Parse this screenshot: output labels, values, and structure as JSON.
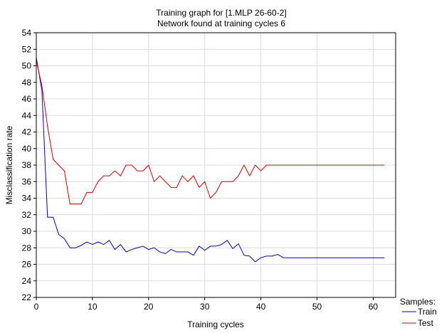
{
  "chart_data": {
    "type": "line",
    "title": "Training graph for [1.MLP 26-60-2]",
    "subtitle": "Network found at training cycles 6",
    "xlabel": "Training cycles",
    "ylabel": "Misclassification rate",
    "xlim": [
      0,
      64
    ],
    "ylim": [
      22,
      54
    ],
    "x_ticks": [
      0,
      10,
      20,
      30,
      40,
      50,
      60
    ],
    "y_ticks": [
      22,
      24,
      26,
      28,
      30,
      32,
      34,
      36,
      38,
      40,
      42,
      44,
      46,
      48,
      50,
      52,
      54
    ],
    "grid": true,
    "legend": {
      "title": "Samples:",
      "placement": "bottom-right"
    },
    "series": [
      {
        "name": "Train",
        "color": "#0000cc",
        "x": [
          0,
          1,
          2,
          3,
          4,
          5,
          6,
          7,
          8,
          9,
          10,
          11,
          12,
          13,
          14,
          15,
          16,
          17,
          18,
          19,
          20,
          21,
          22,
          23,
          24,
          25,
          26,
          27,
          28,
          29,
          30,
          31,
          32,
          33,
          34,
          35,
          36,
          37,
          38,
          39,
          40,
          41,
          42,
          43,
          44,
          45,
          46,
          47,
          48,
          49,
          50,
          51,
          52,
          53,
          54,
          55,
          56,
          57,
          58,
          59,
          60,
          61,
          62
        ],
        "values": [
          51.0,
          47.0,
          31.7,
          31.7,
          29.6,
          29.1,
          28.0,
          28.0,
          28.3,
          28.7,
          28.4,
          28.7,
          28.4,
          28.9,
          27.8,
          28.4,
          27.5,
          27.8,
          28.0,
          28.2,
          27.8,
          28.0,
          27.5,
          27.3,
          27.8,
          27.5,
          27.5,
          27.5,
          27.1,
          28.2,
          27.7,
          28.2,
          28.2,
          28.4,
          28.9,
          27.9,
          28.5,
          27.1,
          27.0,
          26.3,
          26.8,
          27.0,
          27.0,
          27.2,
          26.8,
          26.8,
          26.8,
          26.8,
          26.8,
          26.8,
          26.8,
          26.8,
          26.8,
          26.8,
          26.8,
          26.8,
          26.8,
          26.8,
          26.8,
          26.8,
          26.8,
          26.8,
          26.8
        ]
      },
      {
        "name": "Test",
        "color": "#dd0000",
        "x": [
          0,
          1,
          2,
          3,
          4,
          5,
          6,
          7,
          8,
          9,
          10,
          11,
          12,
          13,
          14,
          15,
          16,
          17,
          18,
          19,
          20,
          21,
          22,
          23,
          24,
          25,
          26,
          27,
          28,
          29,
          30,
          31,
          32,
          33,
          34,
          35,
          36,
          37,
          38,
          39,
          40,
          41,
          42,
          43,
          44,
          45,
          46,
          47,
          48,
          49,
          50,
          51,
          52,
          53,
          54,
          55,
          56,
          57,
          58,
          59,
          60,
          61,
          62
        ],
        "values": [
          50.6,
          47.6,
          42.7,
          38.7,
          38.0,
          37.3,
          33.3,
          33.3,
          33.3,
          34.7,
          34.7,
          36.0,
          36.7,
          36.7,
          37.3,
          36.7,
          38.0,
          38.0,
          37.3,
          37.3,
          38.0,
          36.0,
          36.7,
          36.0,
          35.3,
          35.3,
          36.7,
          36.0,
          36.7,
          35.3,
          36.0,
          34.0,
          34.7,
          36.0,
          36.0,
          36.0,
          36.7,
          38.0,
          36.7,
          38.0,
          37.3,
          38.0,
          38.0,
          38.0,
          38.0,
          38.0,
          38.0,
          38.0,
          38.0,
          38.0,
          38.0,
          38.0,
          38.0,
          38.0,
          38.0,
          38.0,
          38.0,
          38.0,
          38.0,
          38.0,
          38.0,
          38.0,
          38.0
        ]
      }
    ]
  },
  "colors": {
    "background": "#ffffff",
    "grid": "#dcdcdc",
    "axis": "#000000"
  }
}
